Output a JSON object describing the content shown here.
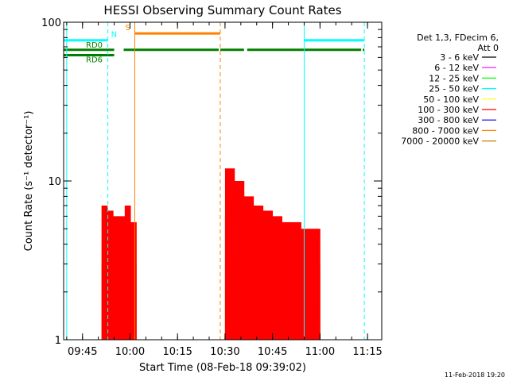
{
  "chart_data": {
    "type": "area",
    "title": "HESSI Observing Summary Count Rates",
    "xlabel": "Start Time (08-Feb-18 09:39:02)",
    "ylabel": "Count Rate (s⁻¹ detector⁻¹)",
    "yscale": "log",
    "ylim": [
      1,
      100
    ],
    "xlim": [
      "09:39:02",
      "11:19:30"
    ],
    "x_ticks": [
      "09:45",
      "10:00",
      "10:15",
      "10:30",
      "10:45",
      "11:00",
      "11:15"
    ],
    "y_ticks": [
      "1",
      "10",
      "100"
    ],
    "grid": false,
    "footer": "11-Feb-2018 19:20",
    "legend": {
      "placement": "right",
      "header": [
        "Det 1,3, FDecim 6,",
        "Att 0"
      ],
      "entries": [
        {
          "label": "3 - 6 keV",
          "color": "#000000"
        },
        {
          "label": "6 - 12 keV",
          "color": "#ff00ff"
        },
        {
          "label": "12 - 25 keV",
          "color": "#00ff00"
        },
        {
          "label": "25 - 50 keV",
          "color": "#00ffff"
        },
        {
          "label": "50 - 100 keV",
          "color": "#ffff00"
        },
        {
          "label": "100 - 300 keV",
          "color": "#ff0000"
        },
        {
          "label": "300 - 800 keV",
          "color": "#0000ff"
        },
        {
          "label": "800 - 7000 keV",
          "color": "#ff8000"
        },
        {
          "label": "7000 - 20000 keV",
          "color": "#c08000"
        }
      ]
    },
    "flag_lines": [
      {
        "label": "SAA",
        "short": "S",
        "color": "#ff8000",
        "level": 85,
        "segments": [
          [
            "10:01:30",
            "10:28:30"
          ]
        ]
      },
      {
        "label": "Night",
        "short": "N",
        "color": "#00ffff",
        "level": 77,
        "segments": [
          [
            "09:39:02",
            "09:53:00"
          ],
          [
            "10:55:00",
            "11:14:00"
          ]
        ]
      },
      {
        "label": "RD0",
        "short": "RD0",
        "color": "#008000",
        "level": 67,
        "segments": [
          [
            "09:39:02",
            "09:55:00"
          ],
          [
            "09:58:00",
            "10:28:00"
          ],
          [
            "10:28:30",
            "10:36:00"
          ],
          [
            "10:37:00",
            "11:13:00"
          ],
          [
            "11:13:30",
            "11:14:00"
          ]
        ]
      },
      {
        "label": "RD6",
        "short": "RD6",
        "color": "#008000",
        "level": 62,
        "segments": [
          [
            "09:39:02",
            "09:55:00"
          ]
        ]
      }
    ],
    "event_lines": [
      {
        "time": "09:40:00",
        "color": "#00ffff",
        "style": "solid"
      },
      {
        "time": "09:53:00",
        "color": "#00ffff",
        "style": "dashed"
      },
      {
        "time": "10:01:30",
        "color": "#ff8000",
        "style": "solid"
      },
      {
        "time": "10:28:30",
        "color": "#ff8000",
        "style": "dashed"
      },
      {
        "time": "10:55:00",
        "color": "#00ffff",
        "style": "solid"
      },
      {
        "time": "11:14:00",
        "color": "#00ffff",
        "style": "dashed"
      }
    ],
    "intervals": [
      {
        "start": "09:51:00",
        "end": "10:02:00",
        "series": [
          {
            "name": "800 - 7000 keV",
            "color": "#ff8000",
            "values": [
              2.0,
              2.0,
              2.0,
              2.0,
              2.0,
              2.0
            ]
          },
          {
            "name": "300 - 800 keV",
            "color": "#0000ff",
            "values": [
              3.0,
              3.0,
              3.0,
              3.0,
              3.0,
              3.0
            ]
          },
          {
            "name": "50 - 100 keV",
            "color": "#ffff00",
            "values": [
              4.5,
              4.5,
              4.0,
              4.5,
              4.0,
              4.0
            ]
          },
          {
            "name": "100 - 300 keV",
            "color": "#ff0000",
            "values": [
              7.0,
              6.5,
              6.0,
              6.0,
              7.0,
              5.5
            ]
          }
        ]
      },
      {
        "start": "10:30:00",
        "end": "11:00:00",
        "series": [
          {
            "name": "12 - 25 keV",
            "color": "#00ff00",
            "values": [
              2.0,
              2.0,
              1.8,
              1.8,
              1.7,
              1.8,
              1.8,
              1.7,
              1.7,
              1.7
            ]
          },
          {
            "name": "800 - 7000 keV",
            "color": "#ff8000",
            "values": [
              3.0,
              2.5,
              2.5,
              2.5,
              2.5,
              2.5,
              2.5,
              2.5,
              2.5,
              2.5
            ]
          },
          {
            "name": "300 - 800 keV",
            "color": "#0000ff",
            "values": [
              6.0,
              5.0,
              4.0,
              3.5,
              3.5,
              3.0,
              3.0,
              3.0,
              3.0,
              3.0
            ]
          },
          {
            "name": "50 - 100 keV",
            "color": "#ffff00",
            "values": [
              8.0,
              6.0,
              5.0,
              4.5,
              4.0,
              4.0,
              4.0,
              4.0,
              4.0,
              4.0
            ]
          },
          {
            "name": "100 - 300 keV",
            "color": "#ff0000",
            "values": [
              12.0,
              10.0,
              8.0,
              7.0,
              6.5,
              6.0,
              5.5,
              5.5,
              5.0,
              5.0
            ]
          }
        ]
      }
    ]
  }
}
